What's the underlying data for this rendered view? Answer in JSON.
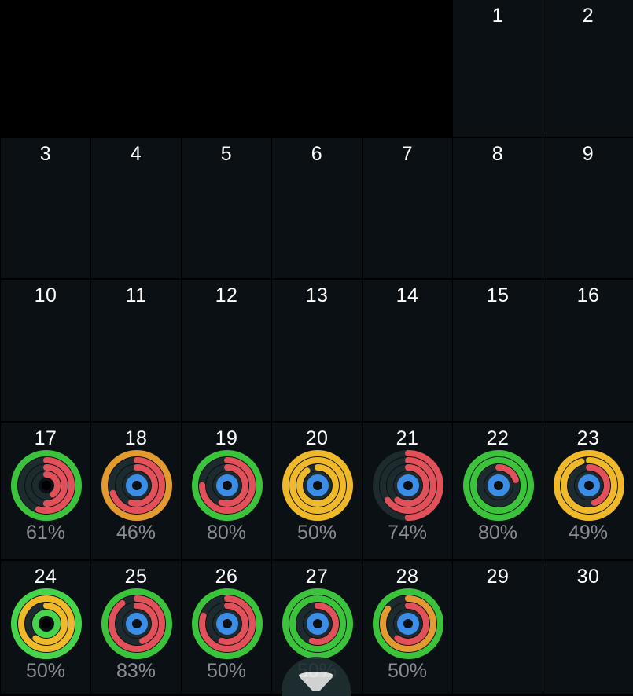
{
  "calendar": {
    "cells": [
      {
        "type": "empty"
      },
      {
        "type": "empty"
      },
      {
        "type": "empty"
      },
      {
        "type": "empty"
      },
      {
        "type": "empty"
      },
      {
        "type": "day",
        "day": "1"
      },
      {
        "type": "day",
        "day": "2"
      },
      {
        "type": "day",
        "day": "3"
      },
      {
        "type": "day",
        "day": "4"
      },
      {
        "type": "day",
        "day": "5"
      },
      {
        "type": "day",
        "day": "6"
      },
      {
        "type": "day",
        "day": "7"
      },
      {
        "type": "day",
        "day": "8"
      },
      {
        "type": "day",
        "day": "9"
      },
      {
        "type": "day",
        "day": "10"
      },
      {
        "type": "day",
        "day": "11"
      },
      {
        "type": "day",
        "day": "12"
      },
      {
        "type": "day",
        "day": "13"
      },
      {
        "type": "day",
        "day": "14"
      },
      {
        "type": "day",
        "day": "15"
      },
      {
        "type": "day",
        "day": "16"
      },
      {
        "type": "day",
        "day": "17",
        "percent": "61%",
        "rings": [
          {
            "progress": 1.0,
            "color": "#3bc43b"
          },
          {
            "progress": 0.55,
            "color": "#e2505a"
          },
          {
            "progress": 0.5,
            "color": "#e2505a"
          },
          {
            "progress": 0.4,
            "color": "#e2505a"
          }
        ],
        "center": "black"
      },
      {
        "type": "day",
        "day": "18",
        "percent": "46%",
        "rings": [
          {
            "progress": 1.0,
            "color": "#e39a2e"
          },
          {
            "progress": 0.7,
            "color": "#e2505a"
          },
          {
            "progress": 0.55,
            "color": "#e2505a"
          },
          {
            "progress": 0,
            "color": "#e2505a"
          }
        ],
        "center": "blue"
      },
      {
        "type": "day",
        "day": "19",
        "percent": "80%",
        "rings": [
          {
            "progress": 1.0,
            "color": "#3bc43b"
          },
          {
            "progress": 0.75,
            "color": "#e2505a"
          },
          {
            "progress": 0.55,
            "color": "#e2505a"
          },
          {
            "progress": 0,
            "color": "#e2505a"
          }
        ],
        "center": "blue"
      },
      {
        "type": "day",
        "day": "20",
        "percent": "50%",
        "rings": [
          {
            "progress": 1.0,
            "color": "#f0b92a"
          },
          {
            "progress": 1.0,
            "color": "#f0b92a"
          },
          {
            "progress": 0.9,
            "color": "#f0b92a"
          },
          {
            "progress": 0,
            "color": "#f0b92a"
          }
        ],
        "center": "blue"
      },
      {
        "type": "day",
        "day": "21",
        "percent": "74%",
        "rings": [
          {
            "progress": 0.5,
            "color": "#e2505a"
          },
          {
            "progress": 0.65,
            "color": "#e2505a"
          },
          {
            "progress": 0.6,
            "color": "#e2505a"
          },
          {
            "progress": 0,
            "color": "#e2505a"
          }
        ],
        "center": "blue"
      },
      {
        "type": "day",
        "day": "22",
        "percent": "80%",
        "rings": [
          {
            "progress": 1.0,
            "color": "#3bc43b"
          },
          {
            "progress": 1.0,
            "color": "#3bc43b"
          },
          {
            "progress": 0.2,
            "color": "#e2505a"
          },
          {
            "progress": 0,
            "color": "#e2505a"
          }
        ],
        "center": "blue"
      },
      {
        "type": "day",
        "day": "23",
        "percent": "49%",
        "rings": [
          {
            "progress": 1.0,
            "color": "#f0b92a"
          },
          {
            "progress": 0.95,
            "color": "#f0b92a"
          },
          {
            "progress": 0.45,
            "color": "#e2505a"
          },
          {
            "progress": 0,
            "color": "#e2505a"
          }
        ],
        "center": "blue"
      },
      {
        "type": "day",
        "day": "24",
        "percent": "50%",
        "rings": [
          {
            "progress": 1.0,
            "color": "#46d44a"
          },
          {
            "progress": 1.0,
            "color": "#f0b92a"
          },
          {
            "progress": 0.6,
            "color": "#f0b92a"
          },
          {
            "progress": 1.0,
            "color": "#46d44a"
          }
        ],
        "center": "black"
      },
      {
        "type": "day",
        "day": "25",
        "percent": "83%",
        "rings": [
          {
            "progress": 1.0,
            "color": "#3bc43b"
          },
          {
            "progress": 0.9,
            "color": "#e2505a"
          },
          {
            "progress": 0.45,
            "color": "#e2505a"
          },
          {
            "progress": 0,
            "color": "#e2505a"
          }
        ],
        "center": "blue"
      },
      {
        "type": "day",
        "day": "26",
        "percent": "50%",
        "rings": [
          {
            "progress": 1.0,
            "color": "#3bc43b"
          },
          {
            "progress": 0.8,
            "color": "#e2505a"
          },
          {
            "progress": 0.55,
            "color": "#e2505a"
          },
          {
            "progress": 0,
            "color": "#e2505a"
          }
        ],
        "center": "blue"
      },
      {
        "type": "day",
        "day": "27",
        "percent": "50%",
        "rings": [
          {
            "progress": 1.0,
            "color": "#3bc43b"
          },
          {
            "progress": 1.0,
            "color": "#3bc43b"
          },
          {
            "progress": 0.55,
            "color": "#e2505a"
          },
          {
            "progress": 0,
            "color": "#e2505a"
          }
        ],
        "center": "blue"
      },
      {
        "type": "day",
        "day": "28",
        "percent": "50%",
        "rings": [
          {
            "progress": 1.0,
            "color": "#3bc43b"
          },
          {
            "progress": 0.85,
            "color": "#e39a2e"
          },
          {
            "progress": 0.6,
            "color": "#e2505a"
          },
          {
            "progress": 0,
            "color": "#e2505a"
          }
        ],
        "center": "blue"
      },
      {
        "type": "day",
        "day": "29"
      },
      {
        "type": "day",
        "day": "30"
      }
    ]
  },
  "filter_button": {
    "icon": "funnel-icon"
  },
  "colors": {
    "ring_track": "#1d2a2e",
    "center_blue": "#3b8ee8",
    "cell_bg": "#0b1014",
    "percent_text": "#8a8e93"
  }
}
